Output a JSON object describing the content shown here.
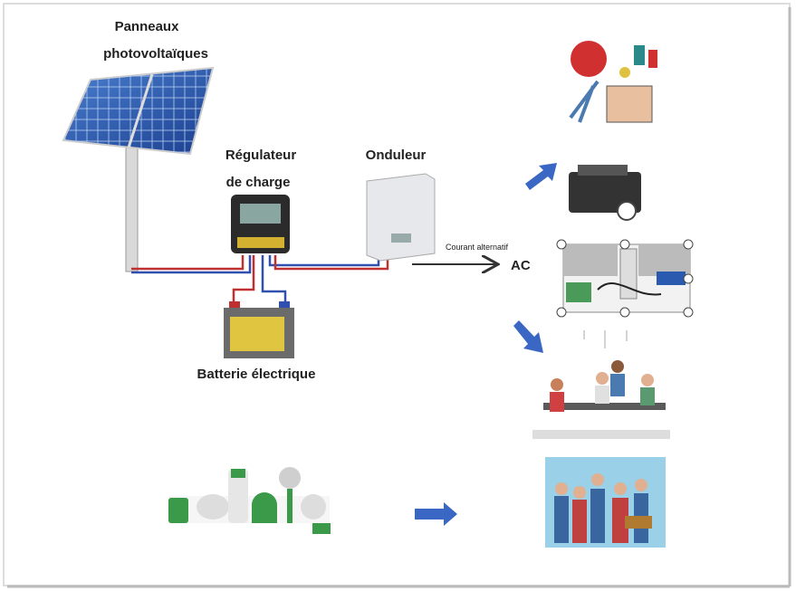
{
  "labels": {
    "panels": [
      "Panneaux",
      "photovoltaïques"
    ],
    "regulator": [
      "Régulateur",
      "de charge"
    ],
    "inverter": "Onduleur",
    "current": "Courant alternatif",
    "ac": "AC",
    "battery": "Batterie électrique"
  }
}
